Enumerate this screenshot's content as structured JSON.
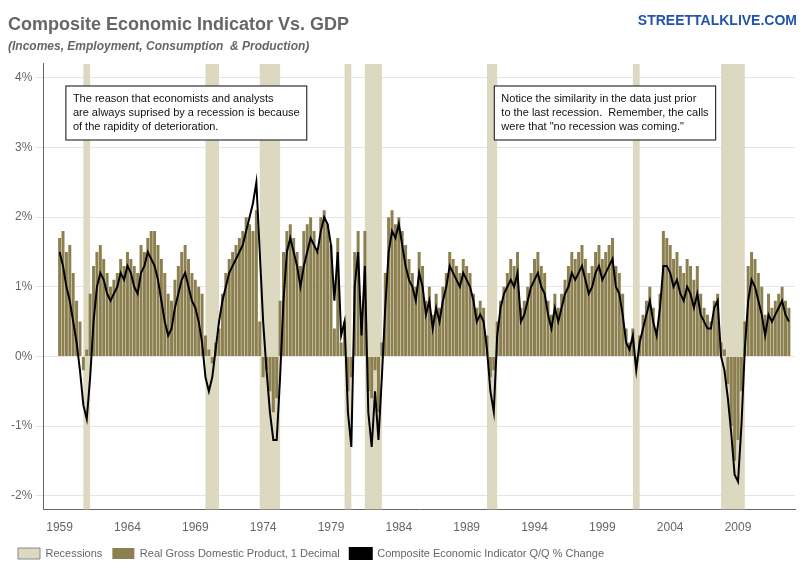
{
  "chart_data": {
    "type": "bar",
    "title": "Composite Economic Indicator Vs. GDP",
    "subtitle": "(Incomes, Employment, Consumption  & Production)",
    "watermark": "STREETTALKLIVE.COM",
    "annotations": [
      "The reason that economists and analysts\nare always suprised by a recession is because\nof the rapidity of deterioration.",
      "Notice the similarity in the data just prior\nto the last recession.  Remember, the calls\nwere that \"no recession was coming.\""
    ],
    "x": [
      1959,
      1959.25,
      1959.5,
      1959.75,
      1960,
      1960.25,
      1960.5,
      1960.75,
      1961,
      1961.25,
      1961.5,
      1961.75,
      1962,
      1962.25,
      1962.5,
      1962.75,
      1963,
      1963.25,
      1963.5,
      1963.75,
      1964,
      1964.25,
      1964.5,
      1964.75,
      1965,
      1965.25,
      1965.5,
      1965.75,
      1966,
      1966.25,
      1966.5,
      1966.75,
      1967,
      1967.25,
      1967.5,
      1967.75,
      1968,
      1968.25,
      1968.5,
      1968.75,
      1969,
      1969.25,
      1969.5,
      1969.75,
      1970,
      1970.25,
      1970.5,
      1970.75,
      1971,
      1971.25,
      1971.5,
      1971.75,
      1972,
      1972.25,
      1972.5,
      1972.75,
      1973,
      1973.25,
      1973.5,
      1973.75,
      1974,
      1974.25,
      1974.5,
      1974.75,
      1975,
      1975.25,
      1975.5,
      1975.75,
      1976,
      1976.25,
      1976.5,
      1976.75,
      1977,
      1977.25,
      1977.5,
      1977.75,
      1978,
      1978.25,
      1978.5,
      1978.75,
      1979,
      1979.25,
      1979.5,
      1979.75,
      1980,
      1980.25,
      1980.5,
      1980.75,
      1981,
      1981.25,
      1981.5,
      1981.75,
      1982,
      1982.25,
      1982.5,
      1982.75,
      1983,
      1983.25,
      1983.5,
      1983.75,
      1984,
      1984.25,
      1984.5,
      1984.75,
      1985,
      1985.25,
      1985.5,
      1985.75,
      1986,
      1986.25,
      1986.5,
      1986.75,
      1987,
      1987.25,
      1987.5,
      1987.75,
      1988,
      1988.25,
      1988.5,
      1988.75,
      1989,
      1989.25,
      1989.5,
      1989.75,
      1990,
      1990.25,
      1990.5,
      1990.75,
      1991,
      1991.25,
      1991.5,
      1991.75,
      1992,
      1992.25,
      1992.5,
      1992.75,
      1993,
      1993.25,
      1993.5,
      1993.75,
      1994,
      1994.25,
      1994.5,
      1994.75,
      1995,
      1995.25,
      1995.5,
      1995.75,
      1996,
      1996.25,
      1996.5,
      1996.75,
      1997,
      1997.25,
      1997.5,
      1997.75,
      1998,
      1998.25,
      1998.5,
      1998.75,
      1999,
      1999.25,
      1999.5,
      1999.75,
      2000,
      2000.25,
      2000.5,
      2000.75,
      2001,
      2001.25,
      2001.5,
      2001.75,
      2002,
      2002.25,
      2002.5,
      2002.75,
      2003,
      2003.25,
      2003.5,
      2003.75,
      2004,
      2004.25,
      2004.5,
      2004.75,
      2005,
      2005.25,
      2005.5,
      2005.75,
      2006,
      2006.25,
      2006.5,
      2006.75,
      2007,
      2007.25,
      2007.5,
      2007.75,
      2008,
      2008.25,
      2008.5,
      2008.75,
      2009,
      2009.25,
      2009.5,
      2009.75,
      2010,
      2010.25,
      2010.5,
      2010.75,
      2011,
      2011.25,
      2011.5,
      2011.75,
      2012,
      2012.25,
      2012.5,
      2012.75
    ],
    "series": [
      {
        "name": "Recessions",
        "type": "span",
        "color": "#ddd8c0",
        "ranges": [
          [
            1960.75,
            1961.25
          ],
          [
            1969.75,
            1970.75
          ],
          [
            1973.75,
            1975.25
          ],
          [
            1980.0,
            1980.5
          ],
          [
            1981.5,
            1982.75
          ],
          [
            1990.5,
            1991.25
          ],
          [
            2001.25,
            2001.75
          ],
          [
            2007.75,
            2009.5
          ]
        ]
      },
      {
        "name": "Real Gross Domestic Product, 1 Decimal",
        "type": "bar",
        "color": "#8c8050",
        "values": [
          1.7,
          1.8,
          1.5,
          1.6,
          1.2,
          0.8,
          0.5,
          -0.2,
          0.1,
          0.9,
          1.3,
          1.5,
          1.6,
          1.4,
          1.2,
          1.0,
          1.1,
          1.2,
          1.4,
          1.3,
          1.5,
          1.4,
          1.3,
          1.2,
          1.6,
          1.5,
          1.7,
          1.8,
          1.8,
          1.6,
          1.4,
          1.2,
          0.9,
          0.8,
          1.1,
          1.3,
          1.5,
          1.6,
          1.4,
          1.2,
          1.1,
          1.0,
          0.9,
          0.3,
          0.1,
          -0.1,
          0.2,
          0.4,
          0.9,
          1.2,
          1.4,
          1.5,
          1.6,
          1.7,
          1.8,
          2.0,
          1.9,
          1.8,
          2.1,
          0.5,
          -0.3,
          -0.2,
          -0.5,
          -0.8,
          -0.6,
          0.8,
          1.5,
          1.8,
          1.9,
          1.7,
          1.5,
          1.3,
          1.8,
          1.9,
          2.0,
          1.8,
          1.5,
          2.0,
          2.1,
          1.9,
          1.6,
          0.4,
          1.7,
          0.2,
          0.5,
          -0.5,
          -0.3,
          1.5,
          1.8,
          0.5,
          1.8,
          -0.5,
          -0.6,
          -0.2,
          -0.8,
          0.2,
          1.2,
          2.0,
          2.1,
          1.9,
          2.0,
          1.8,
          1.6,
          1.4,
          1.2,
          1.0,
          1.5,
          1.3,
          0.8,
          1.0,
          0.6,
          0.9,
          0.7,
          1.0,
          1.2,
          1.5,
          1.4,
          1.3,
          1.2,
          1.4,
          1.3,
          1.2,
          0.9,
          0.7,
          0.8,
          0.7,
          0.3,
          -0.3,
          -0.2,
          0.5,
          0.8,
          1.0,
          1.2,
          1.4,
          1.3,
          1.5,
          0.7,
          0.8,
          1.0,
          1.2,
          1.4,
          1.5,
          1.3,
          1.2,
          0.8,
          0.6,
          0.9,
          0.7,
          0.9,
          1.1,
          1.3,
          1.5,
          1.4,
          1.5,
          1.6,
          1.4,
          1.2,
          1.3,
          1.5,
          1.6,
          1.4,
          1.5,
          1.6,
          1.7,
          1.3,
          1.2,
          0.9,
          0.4,
          0.2,
          0.4,
          -0.1,
          0.3,
          0.6,
          0.8,
          1.0,
          0.7,
          0.4,
          0.9,
          1.8,
          1.7,
          1.6,
          1.4,
          1.5,
          1.3,
          1.2,
          1.4,
          1.3,
          1.1,
          1.3,
          0.9,
          0.7,
          0.6,
          0.5,
          0.8,
          0.9,
          0.2,
          0.1,
          -0.4,
          -1.0,
          -1.5,
          -1.2,
          -0.5,
          0.5,
          1.3,
          1.5,
          1.4,
          1.2,
          1.0,
          0.6,
          0.9,
          0.7,
          0.8,
          0.9,
          1.0,
          0.8,
          0.7
        ]
      },
      {
        "name": "Composite Economic Indicator Q/Q % Change",
        "type": "line",
        "color": "#000000",
        "values": [
          1.5,
          1.3,
          1.0,
          0.8,
          0.5,
          0.2,
          -0.2,
          -0.7,
          -0.9,
          -0.3,
          0.5,
          1.0,
          1.2,
          1.1,
          0.9,
          0.8,
          0.9,
          1.0,
          1.2,
          1.1,
          1.3,
          1.2,
          1.0,
          0.9,
          1.2,
          1.3,
          1.5,
          1.4,
          1.3,
          1.1,
          0.8,
          0.5,
          0.3,
          0.4,
          0.7,
          0.9,
          1.1,
          1.2,
          1.0,
          0.8,
          0.7,
          0.5,
          0.2,
          -0.3,
          -0.5,
          -0.3,
          0.1,
          0.5,
          0.8,
          1.0,
          1.2,
          1.3,
          1.4,
          1.5,
          1.6,
          1.8,
          2.0,
          2.2,
          2.5,
          1.5,
          0.5,
          -0.2,
          -0.8,
          -1.2,
          -1.2,
          -0.3,
          0.8,
          1.5,
          1.7,
          1.5,
          1.3,
          1.0,
          1.3,
          1.5,
          1.7,
          1.6,
          1.5,
          1.8,
          2.0,
          1.9,
          1.6,
          0.8,
          1.5,
          0.3,
          0.5,
          -0.8,
          -1.3,
          1.0,
          1.5,
          0.3,
          1.3,
          -0.8,
          -1.3,
          -0.5,
          -1.2,
          -0.3,
          0.7,
          1.5,
          1.8,
          1.7,
          1.9,
          1.6,
          1.3,
          1.1,
          1.0,
          0.8,
          1.2,
          1.0,
          0.6,
          0.8,
          0.4,
          0.7,
          0.5,
          0.8,
          1.0,
          1.3,
          1.2,
          1.1,
          1.0,
          1.2,
          1.1,
          1.0,
          0.8,
          0.5,
          0.6,
          0.5,
          0.1,
          -0.5,
          -0.8,
          0.3,
          0.7,
          0.9,
          1.0,
          1.1,
          1.0,
          1.2,
          0.5,
          0.6,
          0.8,
          1.0,
          1.1,
          1.2,
          1.0,
          0.9,
          0.6,
          0.4,
          0.7,
          0.5,
          0.7,
          0.9,
          1.0,
          1.2,
          1.1,
          1.2,
          1.3,
          1.1,
          0.9,
          1.0,
          1.2,
          1.3,
          1.1,
          1.2,
          1.3,
          1.4,
          1.0,
          0.9,
          0.6,
          0.2,
          0.1,
          0.3,
          -0.2,
          0.2,
          0.4,
          0.6,
          0.8,
          0.5,
          0.3,
          0.7,
          1.3,
          1.3,
          1.2,
          1.0,
          1.1,
          0.9,
          0.8,
          1.0,
          0.9,
          0.7,
          0.9,
          0.6,
          0.5,
          0.4,
          0.4,
          0.7,
          0.8,
          0.0,
          -0.2,
          -0.6,
          -1.1,
          -1.7,
          -1.8,
          -1.0,
          0.1,
          0.8,
          1.1,
          1.0,
          0.8,
          0.6,
          0.3,
          0.6,
          0.5,
          0.6,
          0.7,
          0.8,
          0.6,
          0.5
        ]
      }
    ],
    "xlim": [
      1957.8,
      2013.2
    ],
    "xticks": [
      1959,
      1964,
      1969,
      1974,
      1979,
      1984,
      1989,
      1994,
      1999,
      2004,
      2009
    ],
    "ylim": [
      -2.2,
      4.2
    ],
    "yticks": [
      {
        "value": -2,
        "label": "-2%"
      },
      {
        "value": -1,
        "label": "-1%"
      },
      {
        "value": 0,
        "label": "0%"
      },
      {
        "value": 1,
        "label": "1%"
      },
      {
        "value": 2,
        "label": "2%"
      },
      {
        "value": 3,
        "label": "3%"
      },
      {
        "value": 4,
        "label": "4%"
      }
    ],
    "grid": "y",
    "legend": "bottom"
  }
}
